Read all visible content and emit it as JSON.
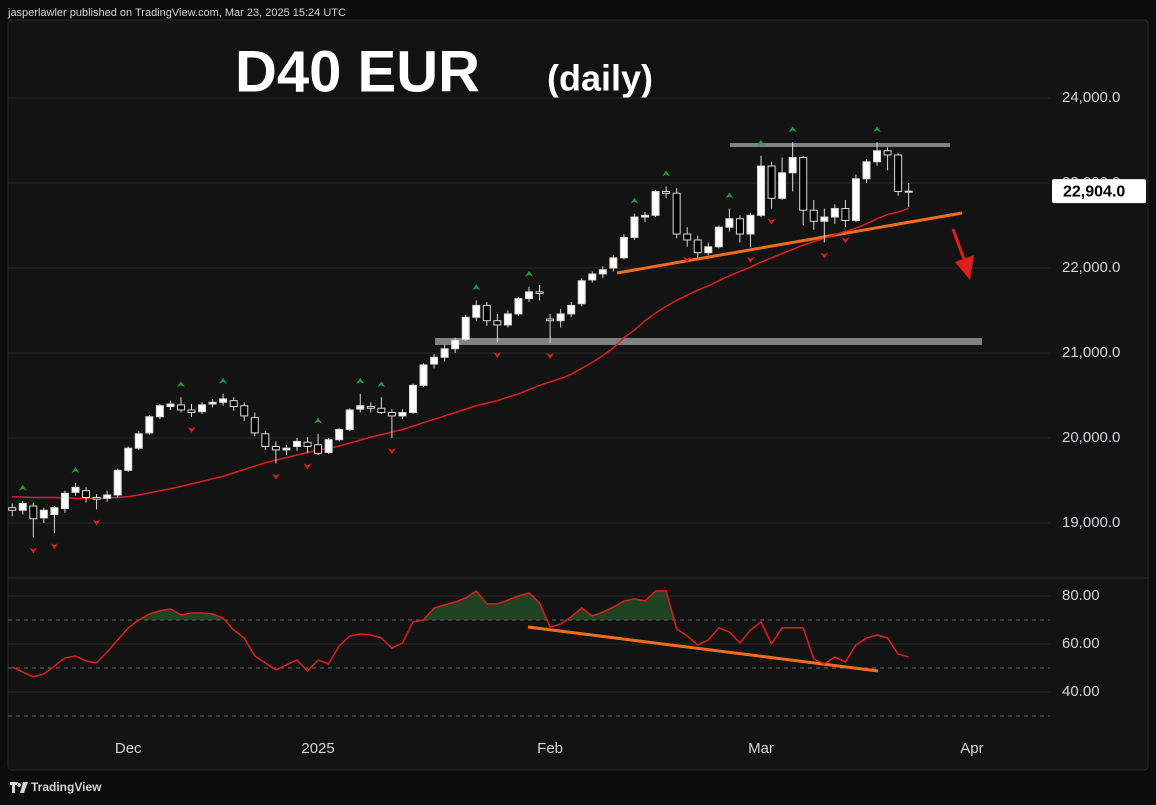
{
  "header": {
    "byline": "jasperlawler published on TradingView.com, Mar 23, 2025 15:24 UTC"
  },
  "footer": {
    "brand": "TradingView"
  },
  "chart_data": [
    {
      "type": "candlestick",
      "title": "D40 EUR",
      "subtitle": "(daily)",
      "open": [
        19180,
        19150,
        19200,
        19060,
        19100,
        19170,
        19360,
        19380,
        19300,
        19290,
        19330,
        19620,
        19880,
        20060,
        20250,
        20370,
        20390,
        20330,
        20310,
        20400,
        20420,
        20440,
        20380,
        20240,
        20050,
        19900,
        19860,
        19900,
        19950,
        19920,
        19830,
        19980,
        20100,
        20340,
        20370,
        20350,
        20300,
        20260,
        20300,
        20620,
        20870,
        20950,
        21050,
        21160,
        21420,
        21560,
        21380,
        21330,
        21460,
        21640,
        21720,
        21400,
        21380,
        21460,
        21580,
        21860,
        21930,
        22000,
        22120,
        22360,
        22600,
        22620,
        22900,
        22880,
        22400,
        22330,
        22180,
        22250,
        22480,
        22580,
        22400,
        22620,
        23200,
        22820,
        23120,
        23300,
        22680,
        22550,
        22600,
        22700,
        22560,
        23050,
        23250,
        23380,
        23330,
        22900
      ],
      "high": [
        19230,
        19260,
        19240,
        19180,
        19200,
        19380,
        19470,
        19420,
        19340,
        19380,
        19640,
        19900,
        20080,
        20270,
        20400,
        20440,
        20480,
        20400,
        20420,
        20460,
        20520,
        20480,
        20420,
        20300,
        20080,
        19960,
        19920,
        20000,
        20010,
        20050,
        20000,
        20120,
        20350,
        20520,
        20420,
        20480,
        20340,
        20340,
        20640,
        20880,
        20990,
        21100,
        21180,
        21450,
        21620,
        21600,
        21460,
        21500,
        21660,
        21780,
        21800,
        21460,
        21520,
        21600,
        21880,
        21960,
        22020,
        22150,
        22400,
        22640,
        22660,
        22920,
        22960,
        22940,
        22480,
        22380,
        22300,
        22500,
        22700,
        22620,
        22650,
        23320,
        23250,
        23300,
        23480,
        23320,
        22800,
        22700,
        22750,
        22800,
        23100,
        23280,
        23480,
        23420,
        23350,
        23000
      ],
      "low": [
        19080,
        19100,
        18830,
        19000,
        18880,
        19120,
        19320,
        19240,
        19160,
        19250,
        19300,
        19600,
        19860,
        20040,
        20220,
        20330,
        20300,
        20250,
        20280,
        20360,
        20380,
        20320,
        20200,
        20020,
        19860,
        19700,
        19800,
        19850,
        19820,
        19800,
        19810,
        19960,
        20080,
        20300,
        20300,
        20280,
        20000,
        20220,
        20280,
        20600,
        20820,
        20900,
        21000,
        21140,
        21380,
        21320,
        21130,
        21300,
        21440,
        21600,
        21620,
        21120,
        21300,
        21420,
        21550,
        21830,
        21880,
        21960,
        22100,
        22330,
        22540,
        22600,
        22820,
        22350,
        22250,
        22120,
        22150,
        22230,
        22430,
        22300,
        22250,
        22600,
        22700,
        22800,
        22900,
        22500,
        22450,
        22300,
        22520,
        22480,
        22540,
        23000,
        23200,
        23150,
        22850,
        22720
      ],
      "close": [
        19150,
        19230,
        19050,
        19150,
        19180,
        19350,
        19420,
        19300,
        19280,
        19330,
        19620,
        19880,
        20050,
        20250,
        20380,
        20400,
        20330,
        20300,
        20390,
        20420,
        20460,
        20370,
        20260,
        20060,
        19900,
        19860,
        19880,
        19960,
        19900,
        19820,
        19980,
        20100,
        20330,
        20380,
        20350,
        20300,
        20260,
        20300,
        20620,
        20860,
        20950,
        21050,
        21150,
        21420,
        21560,
        21380,
        21330,
        21460,
        21640,
        21720,
        21700,
        21380,
        21460,
        21560,
        21850,
        21930,
        21980,
        22120,
        22360,
        22600,
        22620,
        22900,
        22880,
        22400,
        22330,
        22180,
        22250,
        22480,
        22580,
        22400,
        22620,
        23200,
        22820,
        23120,
        23300,
        22680,
        22550,
        22600,
        22700,
        22560,
        23050,
        23250,
        23380,
        23330,
        22900,
        22904
      ],
      "up_color": "#ffffff",
      "down_color": "#000000",
      "ma": {
        "color": "#e01e1e",
        "values": [
          19310,
          19305,
          19300,
          19300,
          19300,
          19295,
          19290,
          19290,
          19290,
          19295,
          19300,
          19310,
          19330,
          19355,
          19380,
          19405,
          19430,
          19460,
          19490,
          19520,
          19550,
          19590,
          19630,
          19670,
          19710,
          19740,
          19770,
          19800,
          19830,
          19860,
          19880,
          19905,
          19940,
          19975,
          20010,
          20040,
          20070,
          20100,
          20140,
          20180,
          20220,
          20260,
          20300,
          20340,
          20380,
          20410,
          20440,
          20480,
          20520,
          20570,
          20620,
          20660,
          20700,
          20750,
          20820,
          20890,
          20970,
          21060,
          21180,
          21270,
          21380,
          21470,
          21550,
          21620,
          21680,
          21740,
          21790,
          21850,
          21910,
          21960,
          22010,
          22070,
          22120,
          22170,
          22220,
          22270,
          22310,
          22350,
          22390,
          22430,
          22470,
          22520,
          22580,
          22630,
          22660,
          22700
        ]
      },
      "fractals_up": [
        1,
        6,
        16,
        20,
        29,
        33,
        35,
        44,
        49,
        59,
        62,
        68,
        71,
        74,
        82
      ],
      "fractal_up_color": "#1e9e3c",
      "fractals_down": [
        2,
        4,
        8,
        17,
        25,
        28,
        36,
        46,
        51,
        64,
        70,
        72,
        77,
        79
      ],
      "fractal_down_color": "#e01e1e",
      "last_price": {
        "value": 22904,
        "label": "22,904.0"
      },
      "ylim": [
        18353,
        24918
      ],
      "yticks": [
        {
          "value": 19000,
          "label": "19,000.0"
        },
        {
          "value": 20000,
          "label": "20,000.0"
        },
        {
          "value": 21000,
          "label": "21,000.0"
        },
        {
          "value": 22000,
          "label": "22,000.0"
        },
        {
          "value": 23000,
          "label": "23,000.0"
        },
        {
          "value": 24000,
          "label": "24,000.0"
        }
      ],
      "grid": true,
      "xlim": [
        -0.4,
        98.4
      ],
      "xticks": [
        {
          "value": 11,
          "label": "Dec"
        },
        {
          "value": 29,
          "label": "2025"
        },
        {
          "value": 51,
          "label": "Feb"
        },
        {
          "value": 71,
          "label": "Mar"
        },
        {
          "value": 91,
          "label": "Apr"
        }
      ]
    },
    {
      "type": "line",
      "color": "#e01e1e",
      "fill_color": "#2e7d32",
      "values": [
        50.4,
        48.3,
        46.3,
        47.5,
        50.8,
        54.2,
        55.0,
        52.9,
        52.1,
        56.7,
        61.7,
        66.7,
        70.0,
        72.5,
        73.8,
        74.6,
        72.1,
        72.9,
        72.9,
        72.5,
        70.8,
        65.8,
        62.5,
        55.0,
        52.1,
        49.2,
        51.3,
        53.3,
        48.8,
        53.3,
        51.7,
        59.2,
        63.3,
        64.2,
        63.8,
        62.5,
        58.3,
        60.4,
        69.2,
        70.0,
        75.0,
        76.3,
        77.5,
        79.2,
        82.1,
        76.7,
        76.7,
        78.3,
        80.0,
        81.3,
        77.1,
        67.1,
        68.3,
        71.3,
        75.0,
        71.7,
        73.3,
        75.4,
        77.9,
        78.8,
        77.9,
        82.1,
        82.1,
        66.3,
        63.3,
        59.6,
        61.7,
        66.7,
        65.0,
        60.4,
        65.8,
        69.2,
        60.0,
        66.7,
        66.7,
        66.7,
        53.8,
        51.7,
        54.6,
        52.5,
        59.6,
        62.5,
        63.8,
        62.5,
        55.8,
        54.6
      ],
      "ylim": [
        20,
        87.5
      ],
      "yticks": [
        {
          "value": 40,
          "label": "40.00"
        },
        {
          "value": 60,
          "label": "60.00"
        },
        {
          "value": 80,
          "label": "80.00"
        }
      ],
      "levels": [
        70,
        50,
        30
      ],
      "fill_above": 70
    }
  ]
}
